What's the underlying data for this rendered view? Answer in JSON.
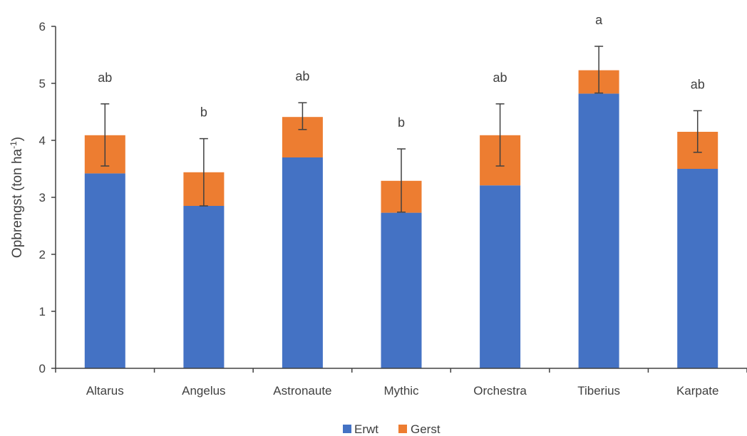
{
  "chart_data": {
    "type": "bar",
    "stacked": true,
    "categories": [
      "Altarus",
      "Angelus",
      "Astronaute",
      "Mythic",
      "Orchestra",
      "Tiberius",
      "Karpate"
    ],
    "series": [
      {
        "name": "Erwt",
        "color": "#4472C4",
        "values": [
          3.42,
          2.85,
          3.7,
          2.73,
          3.21,
          4.82,
          3.5
        ]
      },
      {
        "name": "Gerst",
        "color": "#ED7D31",
        "values": [
          0.67,
          0.59,
          0.71,
          0.56,
          0.88,
          0.41,
          0.65
        ]
      }
    ],
    "error_bars": {
      "lower": [
        3.55,
        2.85,
        4.19,
        2.74,
        3.55,
        4.83,
        3.79
      ],
      "upper": [
        4.64,
        4.03,
        4.66,
        3.85,
        4.64,
        5.65,
        4.52
      ]
    },
    "significance_labels": [
      "ab",
      "b",
      "ab",
      "b",
      "ab",
      "a",
      "ab"
    ],
    "xlabel": "",
    "ylabel": {
      "main": "Opbrengst (ton ha",
      "superscript": "-1",
      "close": ")"
    },
    "ylim": [
      0,
      6
    ],
    "yticks": [
      "0",
      "1",
      "2",
      "3",
      "4",
      "5",
      "6"
    ],
    "grid": false,
    "legend": {
      "position": "bottom",
      "entries": [
        "Erwt",
        "Gerst"
      ]
    }
  }
}
